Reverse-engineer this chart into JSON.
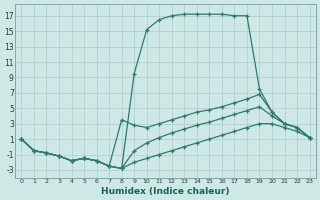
{
  "xlabel": "Humidex (Indice chaleur)",
  "bg_color": "#cde8e5",
  "grid_color": "#aacece",
  "line_color": "#2d7a6e",
  "xlim": [
    -0.5,
    23.5
  ],
  "ylim": [
    -4,
    18.5
  ],
  "xticks": [
    0,
    1,
    2,
    3,
    4,
    5,
    6,
    7,
    8,
    9,
    10,
    11,
    12,
    13,
    14,
    15,
    16,
    17,
    18,
    19,
    20,
    21,
    22,
    23
  ],
  "yticks": [
    -3,
    -1,
    1,
    3,
    5,
    7,
    9,
    11,
    13,
    15,
    17
  ],
  "line1_x": [
    0,
    1,
    2,
    3,
    4,
    5,
    6,
    7,
    8,
    9,
    10,
    11,
    12,
    13,
    14,
    15,
    16,
    17,
    18,
    19,
    20,
    21,
    22,
    23
  ],
  "line1_y": [
    1,
    -0.5,
    -0.8,
    -1.2,
    -1.8,
    -1.5,
    -1.8,
    -2.5,
    -2.8,
    9.5,
    15.2,
    16.5,
    17.0,
    17.2,
    17.2,
    17.2,
    17.2,
    17.0,
    17.0,
    7.5,
    4.5,
    3.0,
    2.5,
    1.2
  ],
  "line2_x": [
    0,
    1,
    2,
    3,
    4,
    5,
    6,
    7,
    8,
    9,
    10,
    11,
    12,
    13,
    14,
    15,
    16,
    17,
    18,
    19,
    20,
    21,
    22,
    23
  ],
  "line2_y": [
    1,
    -0.5,
    -0.8,
    -1.2,
    -1.8,
    -1.5,
    -1.8,
    -2.5,
    3.5,
    2.8,
    2.5,
    3.0,
    3.5,
    4.0,
    4.5,
    4.8,
    5.2,
    5.7,
    6.2,
    6.8,
    4.5,
    3.0,
    2.5,
    1.2
  ],
  "line3_x": [
    0,
    1,
    2,
    3,
    4,
    5,
    6,
    7,
    8,
    9,
    10,
    11,
    12,
    13,
    14,
    15,
    16,
    17,
    18,
    19,
    20,
    21,
    22,
    23
  ],
  "line3_y": [
    1,
    -0.5,
    -0.8,
    -1.2,
    -1.8,
    -1.5,
    -1.8,
    -2.5,
    -2.8,
    -0.5,
    0.5,
    1.2,
    1.8,
    2.3,
    2.8,
    3.2,
    3.7,
    4.2,
    4.7,
    5.2,
    4.0,
    3.0,
    2.5,
    1.2
  ],
  "line4_x": [
    0,
    1,
    2,
    3,
    4,
    5,
    6,
    7,
    8,
    9,
    10,
    11,
    12,
    13,
    14,
    15,
    16,
    17,
    18,
    19,
    20,
    21,
    22,
    23
  ],
  "line4_y": [
    1,
    -0.5,
    -0.8,
    -1.2,
    -1.8,
    -1.5,
    -1.8,
    -2.5,
    -2.8,
    -2.0,
    -1.5,
    -1.0,
    -0.5,
    0.0,
    0.5,
    1.0,
    1.5,
    2.0,
    2.5,
    3.0,
    3.0,
    2.5,
    2.0,
    1.2
  ]
}
